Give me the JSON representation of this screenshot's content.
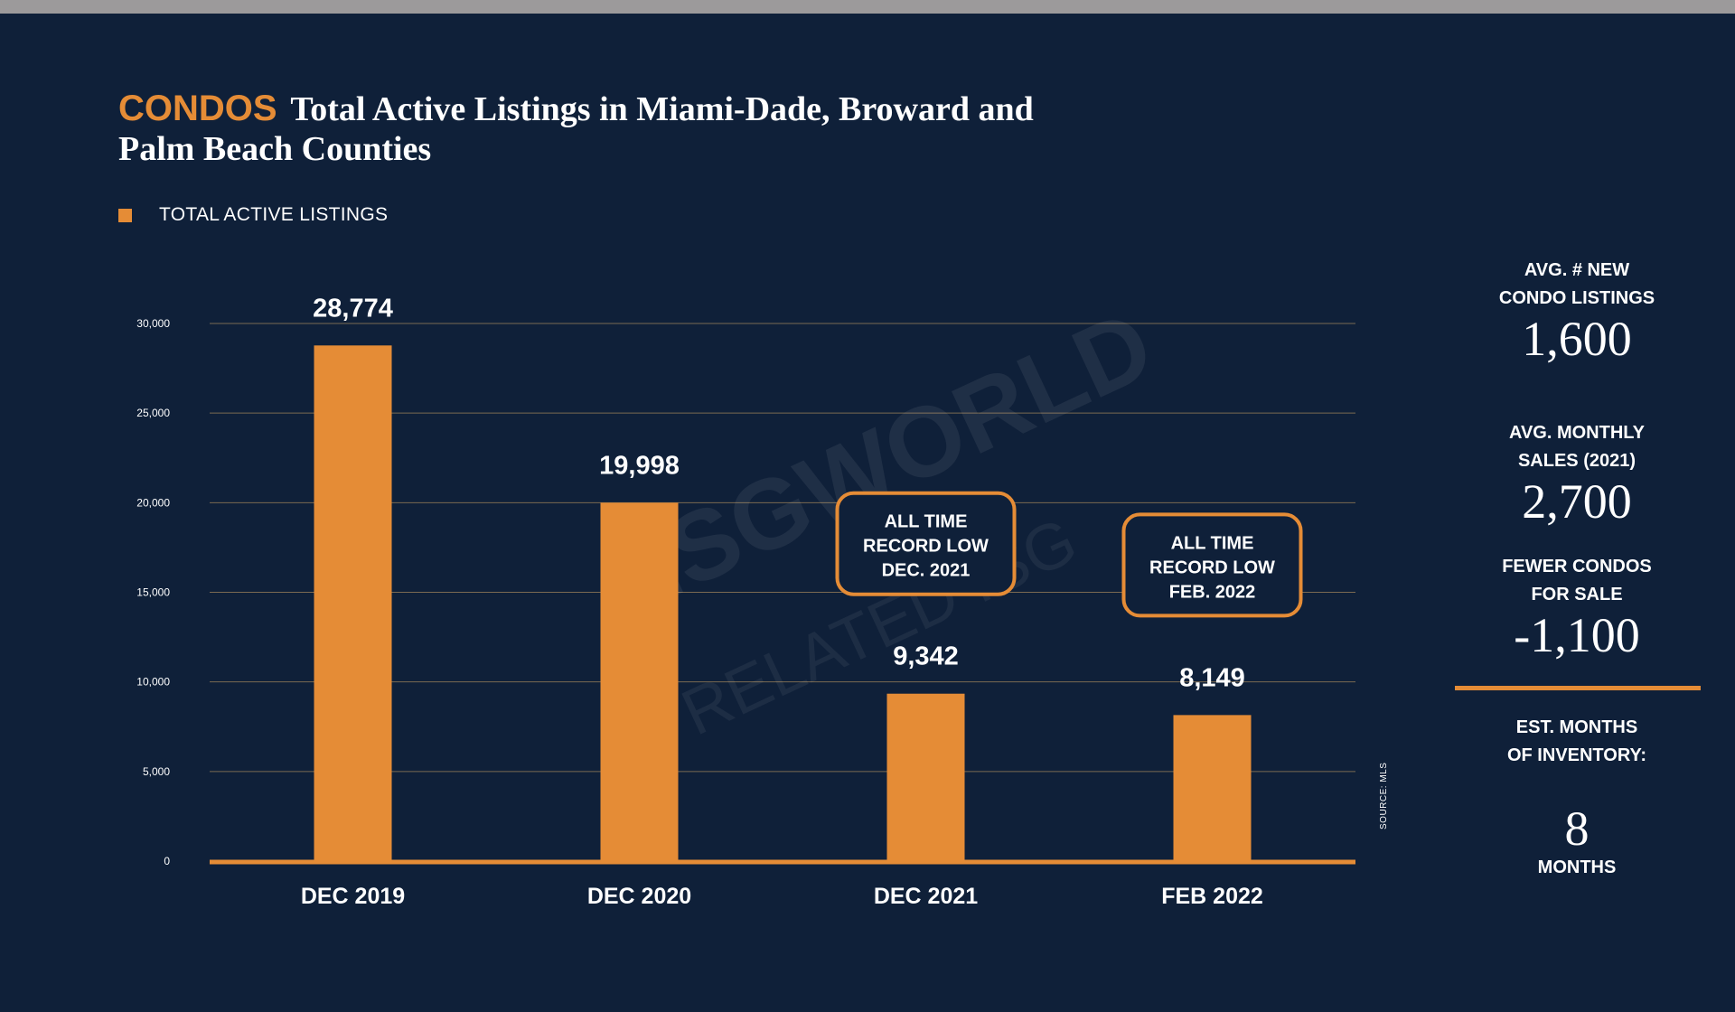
{
  "header": {
    "accent_word": "CONDOS",
    "title_line1": "Total Active Listings in Miami-Dade, Broward and",
    "title_line2": "Palm Beach Counties"
  },
  "legend": {
    "label": "TOTAL ACTIVE LISTINGS"
  },
  "source": "SOURCE: MLS",
  "watermark": {
    "line1": "ISGWORLD",
    "line2": "RELATED ISG"
  },
  "stats": {
    "new_listings": {
      "label1": "AVG. # NEW",
      "label2": "CONDO LISTINGS",
      "value": "1,600"
    },
    "monthly_sales": {
      "label1": "AVG. MONTHLY",
      "label2": "SALES (2021)",
      "value": "2,700"
    },
    "fewer_condos": {
      "label1": "FEWER CONDOS",
      "label2": "FOR SALE",
      "value": "-1,100"
    },
    "inventory": {
      "label1": "EST. MONTHS",
      "label2": "OF INVENTORY:",
      "value": "8",
      "unit": "MONTHS"
    }
  },
  "colors": {
    "background": "#0f2039",
    "accent": "#e58c36",
    "grid": "#7a6a52",
    "text": "#ffffff"
  },
  "chart_data": {
    "type": "bar",
    "title": "Total Active Listings in Miami-Dade, Broward and Palm Beach Counties",
    "categories": [
      "DEC 2019",
      "DEC 2020",
      "DEC 2021",
      "FEB 2022"
    ],
    "series": [
      {
        "name": "TOTAL ACTIVE LISTINGS",
        "values": [
          28774,
          19998,
          9342,
          8149
        ]
      }
    ],
    "value_labels": [
      "28,774",
      "19,998",
      "9,342",
      "8,149"
    ],
    "ylim": [
      0,
      30000
    ],
    "yticks": [
      0,
      5000,
      10000,
      15000,
      20000,
      25000,
      30000
    ],
    "ytick_labels": [
      "0",
      "5,000",
      "10,000",
      "15,000",
      "20,000",
      "25,000",
      "30,000"
    ],
    "grid": true,
    "legend_position": "top-left",
    "annotations": [
      {
        "category": "DEC 2021",
        "lines": [
          "ALL TIME",
          "RECORD LOW",
          "DEC. 2021"
        ]
      },
      {
        "category": "FEB 2022",
        "lines": [
          "ALL TIME",
          "RECORD LOW",
          "FEB. 2022"
        ]
      }
    ]
  }
}
